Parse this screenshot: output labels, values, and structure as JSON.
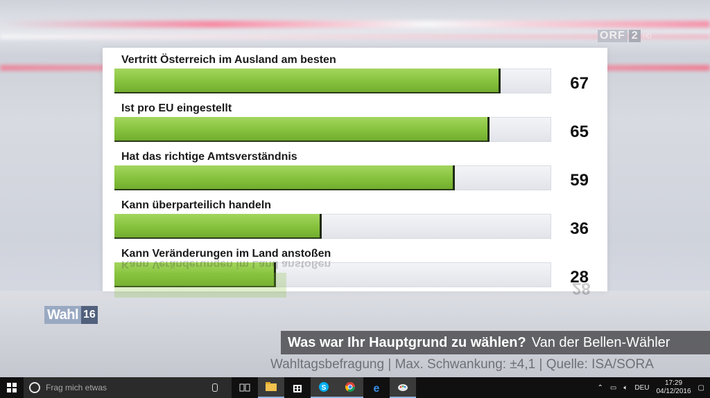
{
  "broadcaster": {
    "logo_text": "ORF",
    "logo_number": "2",
    "logo_hd": "HD"
  },
  "show_logo": {
    "word": "Wahl",
    "year": "16"
  },
  "chart_data": {
    "type": "bar",
    "orientation": "horizontal",
    "title": "",
    "xlim": [
      0,
      100
    ],
    "categories": [
      "Vertritt Österreich im Ausland am besten",
      "Ist pro EU eingestellt",
      "Hat das richtige Amtsverständnis",
      "Kann überparteilich handeln",
      "Kann Veränderungen im Land anstoßen"
    ],
    "values": [
      67,
      65,
      59,
      36,
      28
    ],
    "value_labels": [
      "67",
      "65",
      "59",
      "36",
      "28"
    ],
    "bar_color": "#86c23d",
    "grid": false,
    "legend": "none"
  },
  "caption": {
    "question": "Was war Ihr Hauptgrund zu wählen?",
    "segment": "Van der Bellen-Wähler",
    "source": "Wahltagsbefragung | Max. Schwankung: ±4,1 | Quelle: ISA/SORA"
  },
  "taskbar": {
    "search_placeholder": "Frag mich etwas",
    "language": "DEU",
    "time": "17:29",
    "date": "04/12/2016",
    "icons": [
      "task-view-icon",
      "file-explorer-icon",
      "store-icon",
      "skype-icon",
      "chrome-icon",
      "edge-icon",
      "paint-icon"
    ]
  }
}
